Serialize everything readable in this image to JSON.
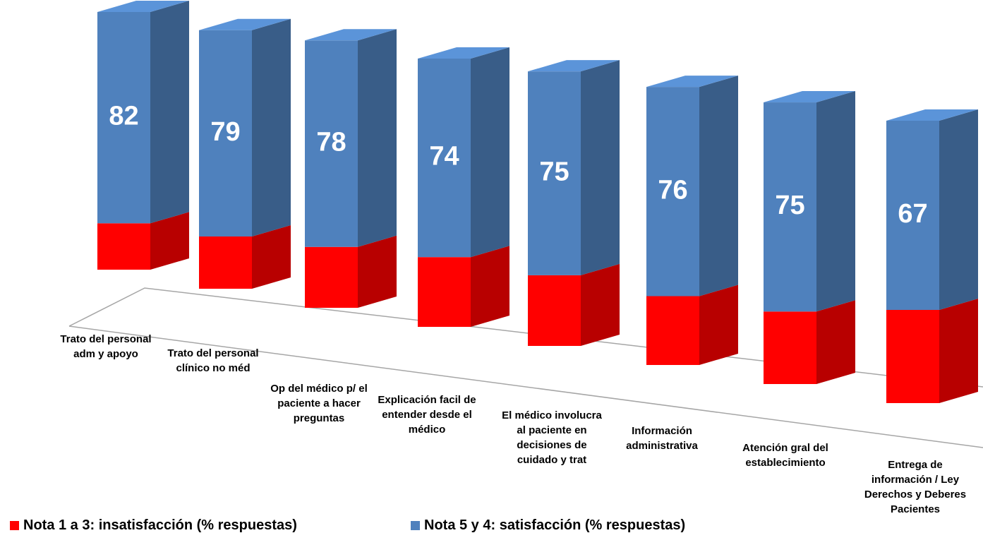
{
  "chart_data": {
    "type": "bar",
    "stacked": true,
    "categories": [
      "Trato del personal adm y apoyo",
      "Trato del personal clínico no méd",
      "Op del médico p/ el paciente a hacer preguntas",
      "Explicación facil de entender desde el médico",
      "El médico involucra al paciente en decisiones de cuidado y trat",
      "Información administrativa",
      "Atención gral del establecimiento",
      "Entrega de información / Ley Derechos y Deberes Pacientes"
    ],
    "series": [
      {
        "name": "Nota 1 a 3: insatisfacción (% respuestas)",
        "color": "#ff0000",
        "values": [
          18,
          20,
          23,
          26,
          26,
          25,
          26,
          33
        ]
      },
      {
        "name": "Nota 5 y 4: satisfacción (% respuestas)",
        "color": "#4f81bd",
        "values": [
          82,
          79,
          78,
          74,
          75,
          76,
          75,
          67
        ],
        "show_values": true
      }
    ],
    "ylim": [
      0,
      100
    ],
    "legend": "bottom"
  }
}
